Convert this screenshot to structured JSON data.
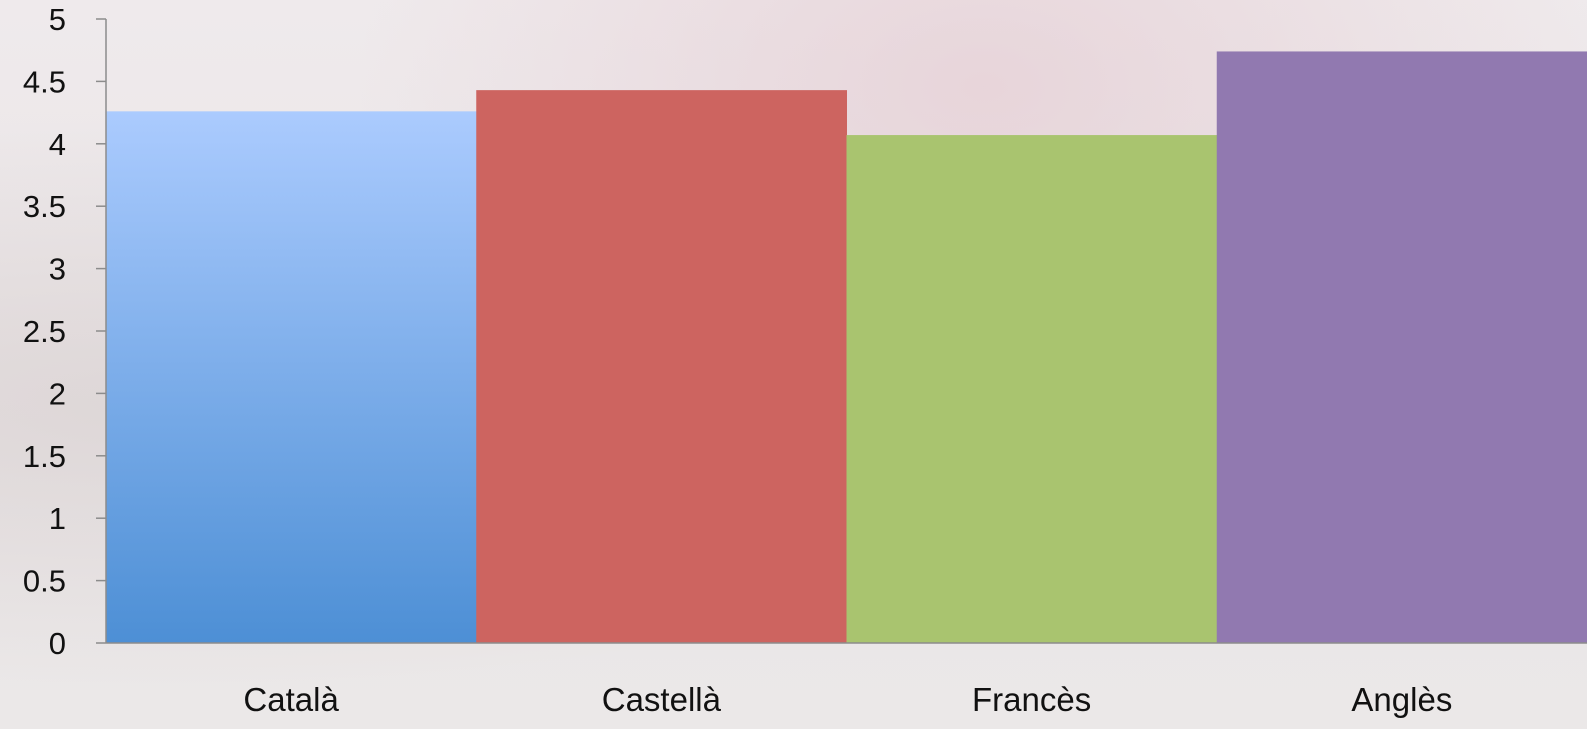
{
  "chart_data": {
    "type": "bar",
    "categories": [
      "Català",
      "Castellà",
      "Francès",
      "Anglès"
    ],
    "values": [
      4.26,
      4.43,
      4.07,
      4.74
    ],
    "colors": [
      "#5b9bd5",
      "#cd6460",
      "#a9c46f",
      "#9179b0"
    ],
    "title": "",
    "xlabel": "",
    "ylabel": "",
    "ylim": [
      0,
      5
    ],
    "yticks": [
      "0",
      "0.5",
      "1",
      "1.5",
      "2",
      "2.5",
      "3",
      "3.5",
      "4",
      "4.5",
      "5"
    ],
    "grid": false,
    "legend": "none"
  }
}
